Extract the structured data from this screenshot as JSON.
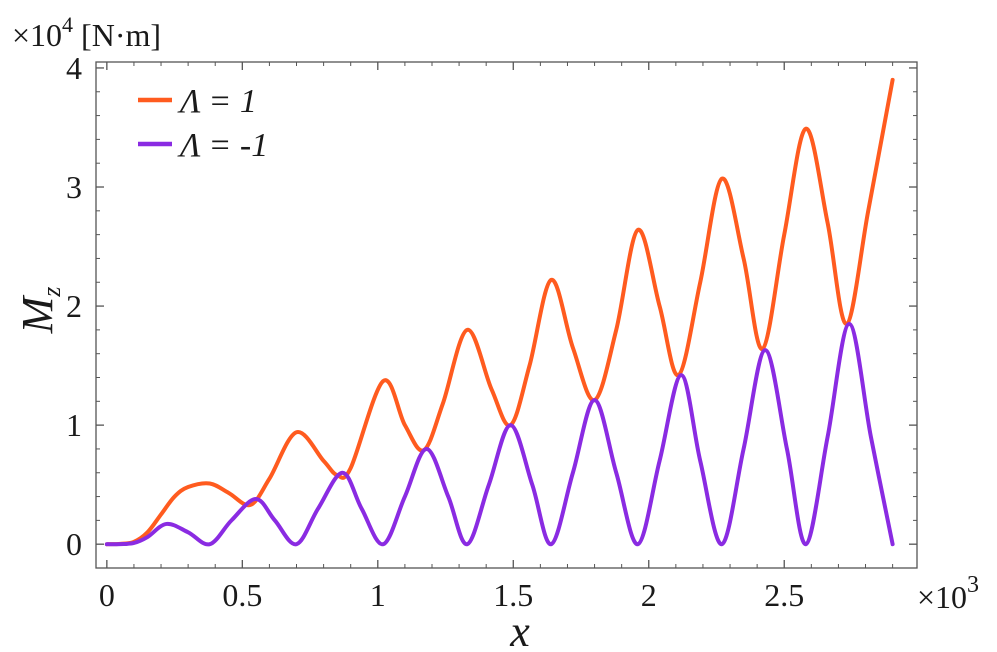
{
  "chart_data": {
    "type": "line",
    "title": "",
    "xlabel": "x",
    "ylabel_main": "M",
    "ylabel_sub": "z",
    "x_multiplier": {
      "base": "×10",
      "exp": "3"
    },
    "y_multiplier": {
      "base": "×10",
      "exp": "4",
      "unit": "[N·m]"
    },
    "xlim": [
      -0.04,
      2.99
    ],
    "ylim": [
      -0.2,
      4.05
    ],
    "xticks": [
      0,
      0.5,
      1,
      1.5,
      2,
      2.5
    ],
    "xtick_labels": [
      "0",
      "0.5",
      "1",
      "1.5",
      "2",
      "2.5"
    ],
    "yticks": [
      0,
      1,
      2,
      3,
      4
    ],
    "ytick_labels": [
      "0",
      "1",
      "2",
      "3",
      "4"
    ],
    "grid": false,
    "legend_position": "top-left",
    "series": [
      {
        "name": "Λ = 1",
        "color": "#ff5b1f",
        "x": [
          0,
          0.05,
          0.1,
          0.15,
          0.2,
          0.25,
          0.3,
          0.38,
          0.45,
          0.53,
          0.6,
          0.7,
          0.8,
          0.85,
          0.9,
          1.02,
          1.1,
          1.17,
          1.24,
          1.33,
          1.42,
          1.49,
          1.56,
          1.64,
          1.72,
          1.8,
          1.88,
          1.96,
          2.04,
          2.11,
          2.19,
          2.27,
          2.35,
          2.42,
          2.5,
          2.58,
          2.66,
          2.73,
          2.81,
          2.9
        ],
        "y": [
          0,
          0.003,
          0.02,
          0.1,
          0.25,
          0.4,
          0.48,
          0.51,
          0.43,
          0.33,
          0.55,
          0.94,
          0.7,
          0.58,
          0.64,
          1.37,
          1.0,
          0.79,
          1.18,
          1.8,
          1.3,
          1.0,
          1.5,
          2.22,
          1.65,
          1.21,
          1.8,
          2.64,
          2.0,
          1.42,
          2.2,
          3.07,
          2.4,
          1.64,
          2.6,
          3.49,
          2.7,
          1.85,
          2.8,
          3.9
        ]
      },
      {
        "name": "Λ = -1",
        "color": "#8a2be2",
        "x": [
          0,
          0.05,
          0.1,
          0.15,
          0.22,
          0.3,
          0.38,
          0.46,
          0.55,
          0.62,
          0.7,
          0.78,
          0.87,
          0.94,
          1.02,
          1.1,
          1.18,
          1.26,
          1.33,
          1.41,
          1.49,
          1.57,
          1.64,
          1.72,
          1.8,
          1.88,
          1.96,
          2.04,
          2.12,
          2.19,
          2.27,
          2.35,
          2.43,
          2.51,
          2.58,
          2.66,
          2.74,
          2.82,
          2.9
        ],
        "y": [
          0,
          0.001,
          0.01,
          0.06,
          0.17,
          0.1,
          0.0,
          0.2,
          0.38,
          0.2,
          0.0,
          0.3,
          0.6,
          0.3,
          0.0,
          0.4,
          0.8,
          0.4,
          0.0,
          0.5,
          1.0,
          0.5,
          0.0,
          0.6,
          1.21,
          0.6,
          0.0,
          0.7,
          1.42,
          0.7,
          0.0,
          0.8,
          1.63,
          0.8,
          0.0,
          0.9,
          1.85,
          0.9,
          0.0
        ]
      }
    ]
  }
}
